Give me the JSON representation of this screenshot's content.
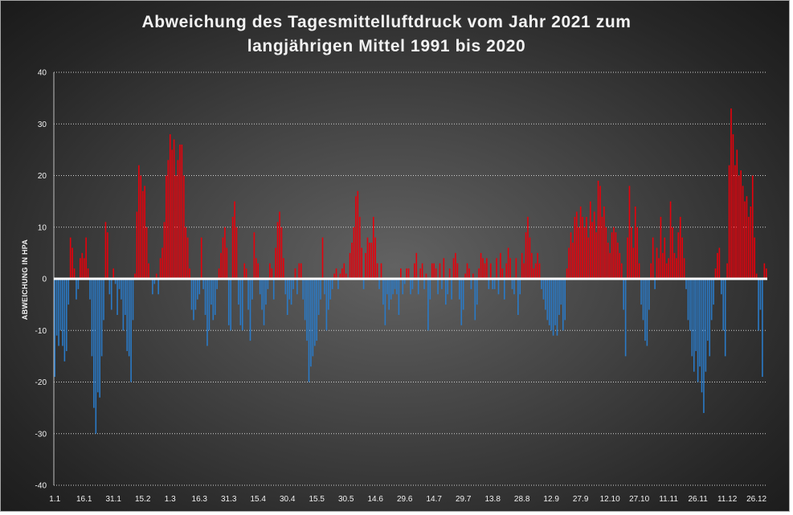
{
  "chart_data": {
    "type": "bar",
    "title": [
      "Abweichung des Tagesmittelluftdruck vom Jahr 2021 zum",
      "langjährigen Mittel 1991 bis 2020"
    ],
    "ylabel": "ABWEICHUNG IN HPA",
    "ylim": [
      -40,
      40
    ],
    "yticks": [
      -40,
      -30,
      -20,
      -10,
      0,
      10,
      20,
      30,
      40
    ],
    "grid": true,
    "x_ticks": [
      {
        "day": 1,
        "label": "1.1"
      },
      {
        "day": 16,
        "label": "16.1"
      },
      {
        "day": 31,
        "label": "31.1"
      },
      {
        "day": 46,
        "label": "15.2"
      },
      {
        "day": 60,
        "label": "1.3"
      },
      {
        "day": 75,
        "label": "16.3"
      },
      {
        "day": 90,
        "label": "31.3"
      },
      {
        "day": 105,
        "label": "15.4"
      },
      {
        "day": 120,
        "label": "30.4"
      },
      {
        "day": 135,
        "label": "15.5"
      },
      {
        "day": 150,
        "label": "30.5"
      },
      {
        "day": 165,
        "label": "14.6"
      },
      {
        "day": 180,
        "label": "29.6"
      },
      {
        "day": 195,
        "label": "14.7"
      },
      {
        "day": 210,
        "label": "29.7"
      },
      {
        "day": 225,
        "label": "13.8"
      },
      {
        "day": 240,
        "label": "28.8"
      },
      {
        "day": 255,
        "label": "12.9"
      },
      {
        "day": 270,
        "label": "27.9"
      },
      {
        "day": 285,
        "label": "12.10"
      },
      {
        "day": 300,
        "label": "27.10"
      },
      {
        "day": 315,
        "label": "11.11"
      },
      {
        "day": 330,
        "label": "26.11"
      },
      {
        "day": 345,
        "label": "11.12"
      },
      {
        "day": 360,
        "label": "26.12"
      }
    ],
    "values": [
      -19,
      -11,
      -13,
      -10,
      -13,
      -16,
      -14,
      -5,
      8,
      6,
      2,
      -4,
      -2,
      4,
      5,
      4,
      8,
      2,
      -4,
      -15,
      -25,
      -30,
      -22,
      -23,
      -15,
      -8,
      11,
      9,
      -3,
      -6,
      2,
      -1,
      -7,
      -2,
      -4,
      -10,
      -7,
      -14,
      -15,
      -20,
      -8,
      1,
      13,
      22,
      20,
      17,
      18,
      10,
      3,
      0,
      -3,
      -1,
      1,
      -3,
      4,
      6,
      11,
      20,
      23,
      28,
      25,
      27,
      20,
      23,
      26,
      26,
      20,
      10,
      8,
      2,
      -6,
      -8,
      -6,
      -4,
      -3,
      8,
      -2,
      -7,
      -13,
      -10,
      -5,
      -8,
      -7,
      -2,
      2,
      5,
      8,
      10,
      6,
      -9,
      -10,
      12,
      15,
      10,
      -5,
      -9,
      -10,
      3,
      2,
      -6,
      -12,
      -4,
      9,
      4,
      3,
      -3,
      -6,
      -9,
      -5,
      -2,
      3,
      2,
      -4,
      6,
      11,
      13,
      10,
      4,
      -3,
      -7,
      -4,
      -5,
      -2,
      2,
      -3,
      3,
      3,
      -4,
      -8,
      -12,
      -20,
      -17,
      -15,
      -13,
      -12,
      -7,
      -4,
      8,
      -3,
      -10,
      -6,
      -4,
      -2,
      1,
      2,
      -2,
      1,
      2,
      3,
      1,
      0,
      5,
      7,
      10,
      16,
      17,
      12,
      6,
      -2,
      5,
      8,
      7,
      7,
      12,
      8,
      3,
      -2,
      3,
      -5,
      -9,
      -3,
      -6,
      -4,
      -3,
      -2,
      -3,
      -7,
      2,
      -3,
      -1,
      2,
      2,
      -3,
      -2,
      3,
      5,
      -3,
      2,
      3,
      -2,
      1,
      -10,
      -4,
      3,
      3,
      2,
      -3,
      3,
      -2,
      4,
      -5,
      -3,
      2,
      -4,
      4,
      5,
      3,
      -4,
      -9,
      -6,
      1,
      3,
      2,
      -2,
      1,
      -8,
      -5,
      2,
      5,
      4,
      3,
      4,
      -2,
      3,
      -2,
      -2,
      4,
      -3,
      5,
      2,
      -4,
      3,
      6,
      4,
      -2,
      -3,
      4,
      -7,
      -3,
      5,
      3,
      9,
      12,
      8,
      5,
      2,
      3,
      5,
      3,
      -2,
      -4,
      -6,
      -8,
      -9,
      -10,
      -11,
      -9,
      -11,
      -7,
      -5,
      -10,
      -8,
      2,
      6,
      9,
      7,
      12,
      13,
      10,
      14,
      12,
      10,
      12,
      8,
      15,
      11,
      13,
      9,
      19,
      18,
      12,
      14,
      10,
      7,
      5,
      9,
      10,
      9,
      7,
      5,
      3,
      -6,
      -15,
      8,
      18,
      10,
      6,
      14,
      10,
      3,
      -5,
      -8,
      -12,
      -13,
      -6,
      3,
      8,
      -2,
      6,
      4,
      12,
      5,
      8,
      3,
      4,
      15,
      10,
      5,
      4,
      9,
      12,
      8,
      4,
      -2,
      -8,
      -10,
      -15,
      -18,
      -14,
      -20,
      -17,
      -22,
      -26,
      -18,
      -12,
      -15,
      -8,
      -5,
      2,
      5,
      6,
      -3,
      -10,
      -15,
      3,
      22,
      33,
      28,
      22,
      25,
      20,
      21,
      18,
      15,
      16,
      12,
      14,
      20,
      8,
      1,
      -10,
      -6,
      -19,
      3,
      2
    ],
    "colors": {
      "positive": "#e8000b",
      "negative": "#2a7ac7",
      "zero_line": "#ffffff",
      "grid": "#d0d0d0"
    }
  }
}
